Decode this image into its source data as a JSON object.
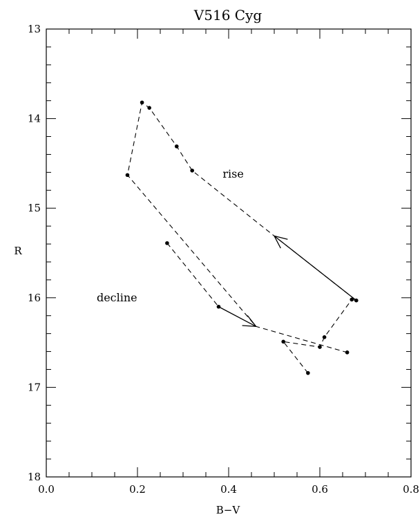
{
  "chart_data": {
    "type": "line",
    "title": "V516 Cyg",
    "xlabel": "B−V",
    "ylabel": "R",
    "xlim": [
      0.0,
      0.8
    ],
    "ylim": [
      18,
      13
    ],
    "y_inverted": true,
    "grid": false,
    "x_ticks": [
      0.0,
      0.2,
      0.4,
      0.6,
      0.8
    ],
    "x_tick_labels": [
      "0.0",
      "0.2",
      "0.4",
      "0.6",
      "0.8"
    ],
    "y_ticks": [
      13,
      14,
      15,
      16,
      17,
      18
    ],
    "y_tick_labels": [
      "13",
      "14",
      "15",
      "16",
      "17",
      "18"
    ],
    "series": [
      {
        "line_style": "dashed",
        "points": [
          {
            "x": 0.574,
            "y": 16.84
          },
          {
            "x": 0.52,
            "y": 16.49
          },
          {
            "x": 0.6,
            "y": 16.55
          },
          {
            "x": 0.61,
            "y": 16.44
          },
          {
            "x": 0.67,
            "y": 16.02
          },
          {
            "x": 0.68,
            "y": 16.03
          },
          {
            "x": 0.5,
            "y": 15.31
          },
          {
            "x": 0.32,
            "y": 14.58
          },
          {
            "x": 0.286,
            "y": 14.31
          },
          {
            "x": 0.226,
            "y": 13.88
          },
          {
            "x": 0.21,
            "y": 13.82
          },
          {
            "x": 0.178,
            "y": 14.63
          },
          {
            "x": 0.46,
            "y": 16.32
          },
          {
            "x": 0.66,
            "y": 16.61
          }
        ]
      },
      {
        "line_style": "dashed",
        "points": [
          {
            "x": 0.265,
            "y": 15.39
          },
          {
            "x": 0.378,
            "y": 16.1
          }
        ]
      }
    ],
    "markers": [
      {
        "x": 0.21,
        "y": 13.82
      },
      {
        "x": 0.226,
        "y": 13.88
      },
      {
        "x": 0.286,
        "y": 14.31
      },
      {
        "x": 0.32,
        "y": 14.58
      },
      {
        "x": 0.178,
        "y": 14.63
      },
      {
        "x": 0.265,
        "y": 15.39
      },
      {
        "x": 0.378,
        "y": 16.1
      },
      {
        "x": 0.67,
        "y": 16.02
      },
      {
        "x": 0.68,
        "y": 16.03
      },
      {
        "x": 0.61,
        "y": 16.44
      },
      {
        "x": 0.6,
        "y": 16.55
      },
      {
        "x": 0.52,
        "y": 16.49
      },
      {
        "x": 0.66,
        "y": 16.61
      },
      {
        "x": 0.574,
        "y": 16.84
      }
    ],
    "arrows": [
      {
        "from": {
          "x": 0.68,
          "y": 16.03
        },
        "to": {
          "x": 0.5,
          "y": 15.31
        }
      },
      {
        "from": {
          "x": 0.378,
          "y": 16.1
        },
        "to": {
          "x": 0.46,
          "y": 16.32
        }
      }
    ],
    "annotations": [
      {
        "text": "rise",
        "x": 0.41,
        "y": 14.62
      },
      {
        "text": "decline",
        "x": 0.155,
        "y": 16.0
      }
    ]
  }
}
